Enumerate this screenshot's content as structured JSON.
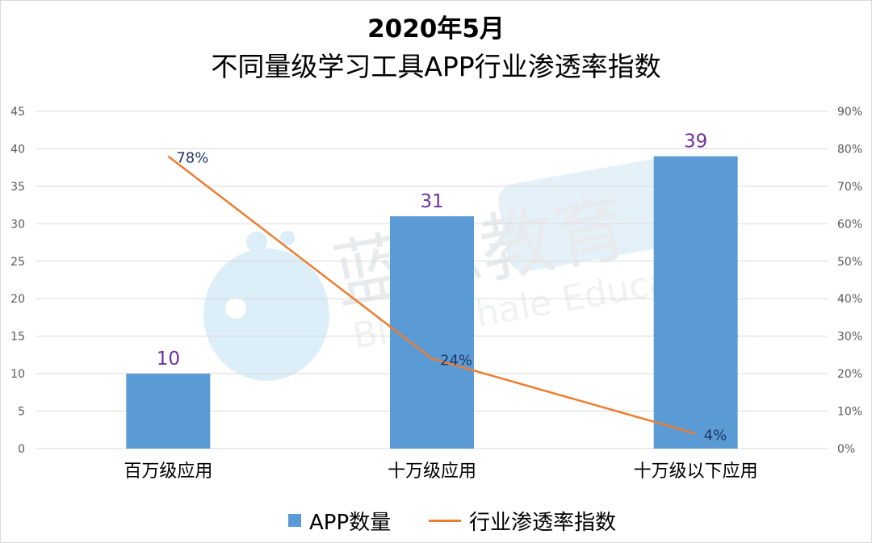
{
  "chart_data": {
    "type": "bar",
    "title": "2020年5月",
    "subtitle": "不同量级学习工具APP行业渗透率指数",
    "categories": [
      "百万级应用",
      "十万级应用",
      "十万级以下应用"
    ],
    "series": [
      {
        "name": "APP数量",
        "type": "bar",
        "axis": "left",
        "values": [
          10,
          31,
          39
        ],
        "labels": [
          "10",
          "31",
          "39"
        ]
      },
      {
        "name": "行业渗透率指数",
        "type": "line",
        "axis": "right",
        "values": [
          0.78,
          0.24,
          0.04
        ],
        "labels": [
          "78%",
          "24%",
          "4%"
        ]
      }
    ],
    "ylim": [
      0,
      45
    ],
    "yticks": [
      "0",
      "5",
      "10",
      "15",
      "20",
      "25",
      "30",
      "35",
      "40",
      "45"
    ],
    "y2lim": [
      0,
      0.9
    ],
    "y2ticks": [
      "0%",
      "10%",
      "20%",
      "30%",
      "40%",
      "50%",
      "60%",
      "70%",
      "80%",
      "90%"
    ],
    "grid": true,
    "legend_position": "bottom",
    "colors": {
      "bar": "#5b9bd5",
      "line": "#ed7d31",
      "bar_label": "#7030a0",
      "line_label": "#1f3864",
      "grid": "#d9d9d9",
      "tick_text": "#595959"
    },
    "watermark": {
      "text_cn": "蓝鲸教育",
      "text_en": "Blue Whale Education"
    }
  }
}
